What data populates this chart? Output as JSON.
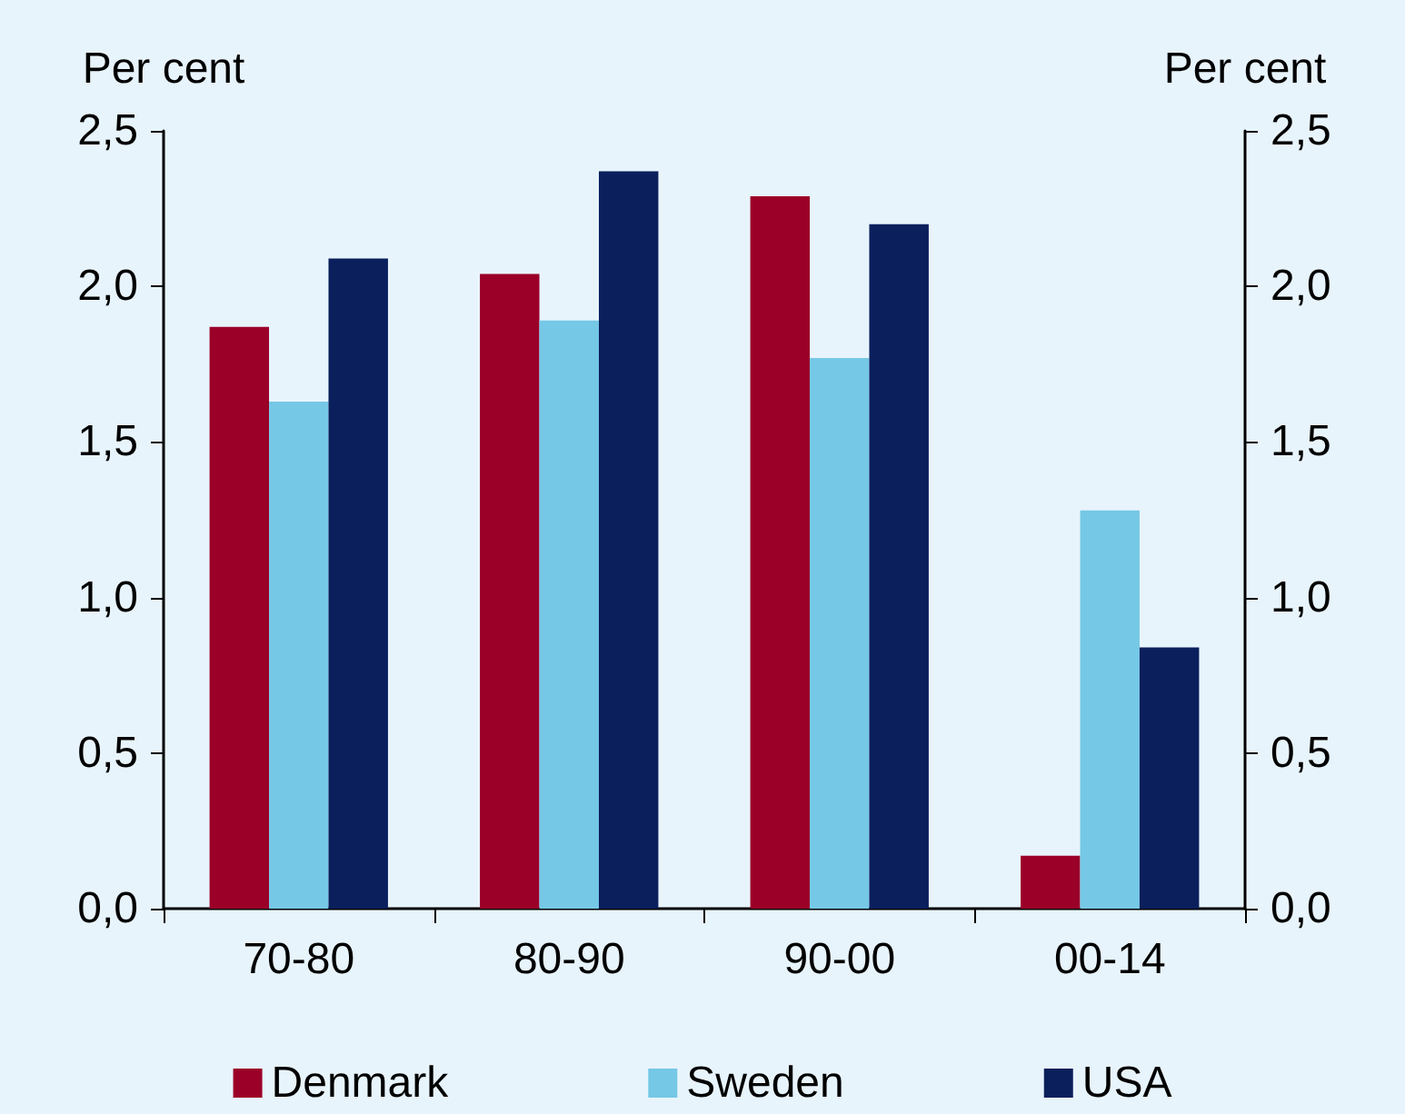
{
  "chart_data": {
    "type": "bar",
    "ylabel": "Per cent",
    "y2label": "Per cent",
    "categories": [
      "70-80",
      "80-90",
      "90-00",
      "00-14"
    ],
    "series": [
      {
        "name": "Denmark",
        "color": "#9b0029",
        "values": [
          1.87,
          2.04,
          2.29,
          0.17
        ]
      },
      {
        "name": "Sweden",
        "color": "#75c8e6",
        "values": [
          1.63,
          1.89,
          1.77,
          1.28
        ]
      },
      {
        "name": "USA",
        "color": "#0a1f5c",
        "values": [
          2.09,
          2.37,
          2.2,
          0.84
        ]
      }
    ],
    "ylim": [
      0,
      2.5
    ],
    "yticks": [
      {
        "value": 0,
        "label": "0,0"
      },
      {
        "value": 0.5,
        "label": "0,5"
      },
      {
        "value": 1,
        "label": "1,0"
      },
      {
        "value": 1.5,
        "label": "1,5"
      },
      {
        "value": 2,
        "label": "2,0"
      },
      {
        "value": 2.5,
        "label": "2,5"
      }
    ],
    "y2lim": [
      0,
      2.5
    ],
    "y2ticks": [
      {
        "value": 0,
        "label": "0,0"
      },
      {
        "value": 0.5,
        "label": "0,5"
      },
      {
        "value": 1,
        "label": "1,0"
      },
      {
        "value": 1.5,
        "label": "1,5"
      },
      {
        "value": 2,
        "label": "2,0"
      },
      {
        "value": 2.5,
        "label": "2,5"
      }
    ],
    "grid": false,
    "legend": "bottom"
  }
}
